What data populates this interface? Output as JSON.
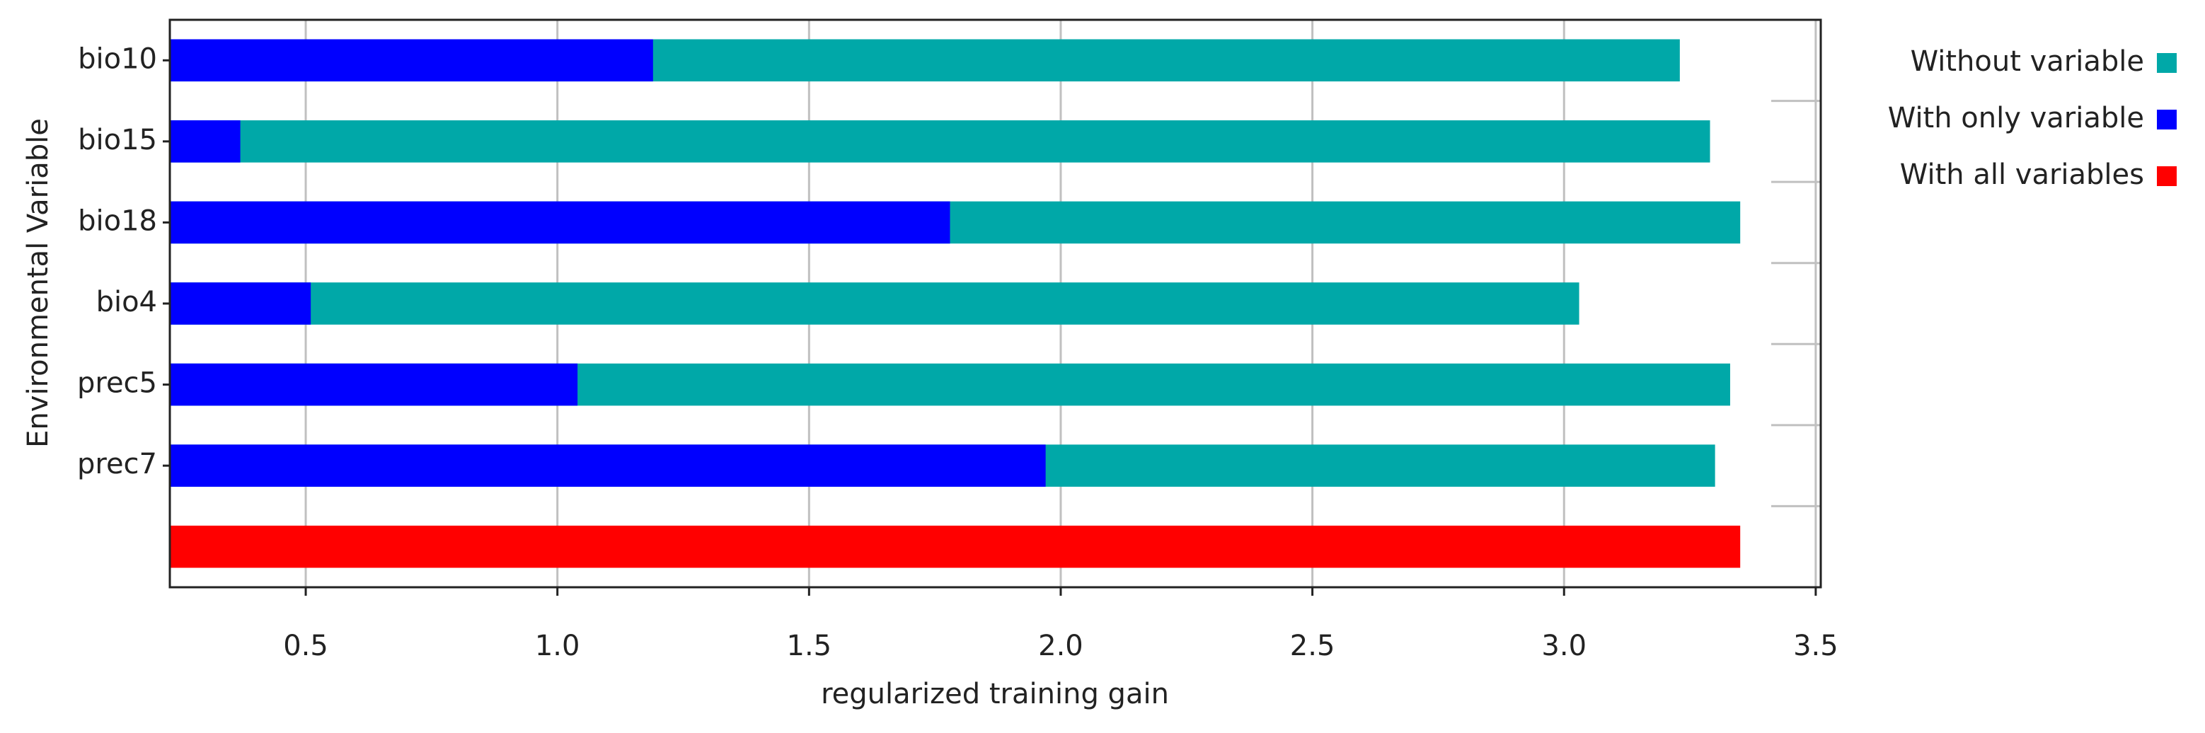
{
  "chart_data": {
    "type": "bar",
    "orientation": "horizontal",
    "xlabel": "regularized training gain",
    "ylabel": "Environmental Variable",
    "categories": [
      "bio10",
      "bio15",
      "bio18",
      "bio4",
      "prec5",
      "prec7",
      null
    ],
    "series": [
      {
        "name": "Without variable",
        "color": "#00a8a8",
        "values": [
          3.23,
          3.29,
          3.35,
          3.03,
          3.33,
          3.3,
          null
        ]
      },
      {
        "name": "With only variable",
        "color": "#0000ff",
        "values": [
          1.19,
          0.37,
          1.78,
          0.51,
          1.04,
          1.97,
          null
        ]
      },
      {
        "name": "With all variables",
        "color": "#ff0000",
        "values": [
          null,
          null,
          null,
          null,
          null,
          null,
          3.35
        ]
      }
    ],
    "xlim": [
      0.23,
      3.51
    ],
    "xticks": [
      {
        "value": 0.5,
        "label": "0.5"
      },
      {
        "value": 1,
        "label": "1.0"
      },
      {
        "value": 1.5,
        "label": "1.5"
      },
      {
        "value": 2,
        "label": "2.0"
      },
      {
        "value": 2.5,
        "label": "2.5"
      },
      {
        "value": 3,
        "label": "3.0"
      },
      {
        "value": 3.5,
        "label": "3.5"
      }
    ],
    "grid": true,
    "legend": "right"
  }
}
